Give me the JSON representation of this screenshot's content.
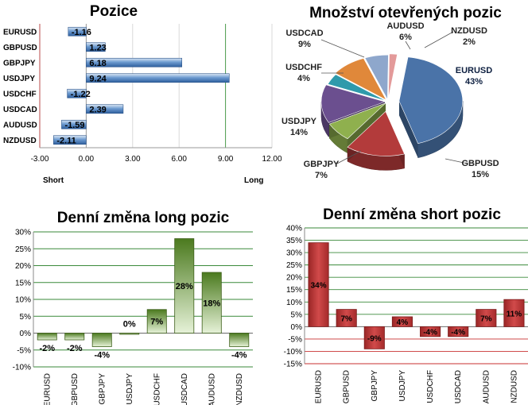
{
  "colors": {
    "position_bar": "#3d74b4",
    "long_bar_top": "#4b7a1e",
    "long_bar_bottom": "#e6f2d8",
    "short_bar": "#c0393a",
    "grid_green": "#3a8a3a",
    "grid_red": "#c83232"
  },
  "chart_data": [
    {
      "type": "bar",
      "orientation": "horizontal",
      "title": "Pozice",
      "categories": [
        "EURUSD",
        "GBPUSD",
        "GBPJPY",
        "USDJPY",
        "USDCHF",
        "USDCAD",
        "AUDUSD",
        "NZDUSD"
      ],
      "values": [
        -1.16,
        1.23,
        6.18,
        9.24,
        -1.22,
        2.39,
        -1.59,
        -2.11
      ],
      "value_labels": [
        "-1.16",
        "1.23",
        "6.18",
        "9.24",
        "-1.22",
        "2.39",
        "-1.59",
        "-2.11"
      ],
      "xlim": [
        -3,
        12
      ],
      "xticks": [
        "-3.00",
        "0.00",
        "3.00",
        "6.00",
        "9.00",
        "12.00"
      ],
      "xlabel_left": "Short",
      "xlabel_right": "Long"
    },
    {
      "type": "pie",
      "title": "Množství otevřených pozic",
      "labels": [
        "EURUSD",
        "GBPUSD",
        "GBPJPY",
        "USDJPY",
        "USDCHF",
        "USDCAD",
        "AUDUSD",
        "NZDUSD"
      ],
      "values": [
        43,
        15,
        7,
        14,
        4,
        9,
        6,
        2
      ],
      "value_labels": [
        "43%",
        "15%",
        "7%",
        "14%",
        "4%",
        "9%",
        "6%",
        "2%"
      ],
      "colors": [
        "#4a73a8",
        "#b33b3b",
        "#8fb04e",
        "#6b4f8f",
        "#2f9aab",
        "#e0883a",
        "#8ea7cc",
        "#e39a9a"
      ]
    },
    {
      "type": "bar",
      "title": "Denní změna long pozic",
      "categories": [
        "EURUSD",
        "GBPUSD",
        "GBPJPY",
        "USDJPY",
        "USDCHF",
        "USDCAD",
        "AUDUSD",
        "NZDUSD"
      ],
      "values": [
        -2,
        -2,
        -4,
        0,
        7,
        28,
        18,
        -4
      ],
      "value_labels": [
        "-2%",
        "-2%",
        "-4%",
        "0%",
        "7%",
        "28%",
        "18%",
        "-4%"
      ],
      "ylim": [
        -10,
        30
      ],
      "yticks": [
        "-10%",
        "-5%",
        "0%",
        "5%",
        "10%",
        "15%",
        "20%",
        "25%",
        "30%"
      ]
    },
    {
      "type": "bar",
      "title": "Denní změna short pozic",
      "categories": [
        "EURUSD",
        "GBPUSD",
        "GBPJPY",
        "USDJPY",
        "USDCHF",
        "USDCAD",
        "AUDUSD",
        "NZDUSD"
      ],
      "values": [
        34,
        7,
        -9,
        4,
        -4,
        -4,
        7,
        11
      ],
      "value_labels": [
        "34%",
        "7%",
        "-9%",
        "4%",
        "-4%",
        "-4%",
        "7%",
        "11%"
      ],
      "ylim": [
        -15,
        40
      ],
      "yticks": [
        "-15%",
        "-10%",
        "-5%",
        "0%",
        "5%",
        "10%",
        "15%",
        "20%",
        "25%",
        "30%",
        "35%",
        "40%"
      ]
    }
  ]
}
